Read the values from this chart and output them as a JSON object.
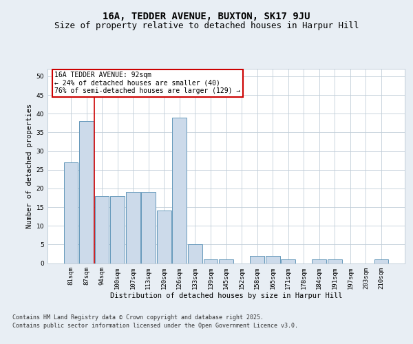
{
  "title1": "16A, TEDDER AVENUE, BUXTON, SK17 9JU",
  "title2": "Size of property relative to detached houses in Harpur Hill",
  "xlabel": "Distribution of detached houses by size in Harpur Hill",
  "ylabel": "Number of detached properties",
  "categories": [
    "81sqm",
    "87sqm",
    "94sqm",
    "100sqm",
    "107sqm",
    "113sqm",
    "120sqm",
    "126sqm",
    "133sqm",
    "139sqm",
    "145sqm",
    "152sqm",
    "158sqm",
    "165sqm",
    "171sqm",
    "178sqm",
    "184sqm",
    "191sqm",
    "197sqm",
    "203sqm",
    "210sqm"
  ],
  "values": [
    27,
    38,
    18,
    18,
    19,
    19,
    14,
    39,
    5,
    1,
    1,
    0,
    2,
    2,
    1,
    0,
    1,
    1,
    0,
    0,
    1
  ],
  "bar_color": "#ccdaea",
  "bar_edge_color": "#6699bb",
  "red_line_x": 1.5,
  "annotation_text": "16A TEDDER AVENUE: 92sqm\n← 24% of detached houses are smaller (40)\n76% of semi-detached houses are larger (129) →",
  "annotation_box_color": "#ffffff",
  "annotation_box_edge": "#cc0000",
  "ylim": [
    0,
    52
  ],
  "yticks": [
    0,
    5,
    10,
    15,
    20,
    25,
    30,
    35,
    40,
    45,
    50
  ],
  "footer1": "Contains HM Land Registry data © Crown copyright and database right 2025.",
  "footer2": "Contains public sector information licensed under the Open Government Licence v3.0.",
  "bg_color": "#e8eef4",
  "plot_bg_color": "#ffffff",
  "grid_color": "#c0cdd8",
  "title1_fontsize": 10,
  "title2_fontsize": 9,
  "axis_label_fontsize": 7.5,
  "tick_fontsize": 6.5,
  "annotation_fontsize": 7,
  "footer_fontsize": 6
}
